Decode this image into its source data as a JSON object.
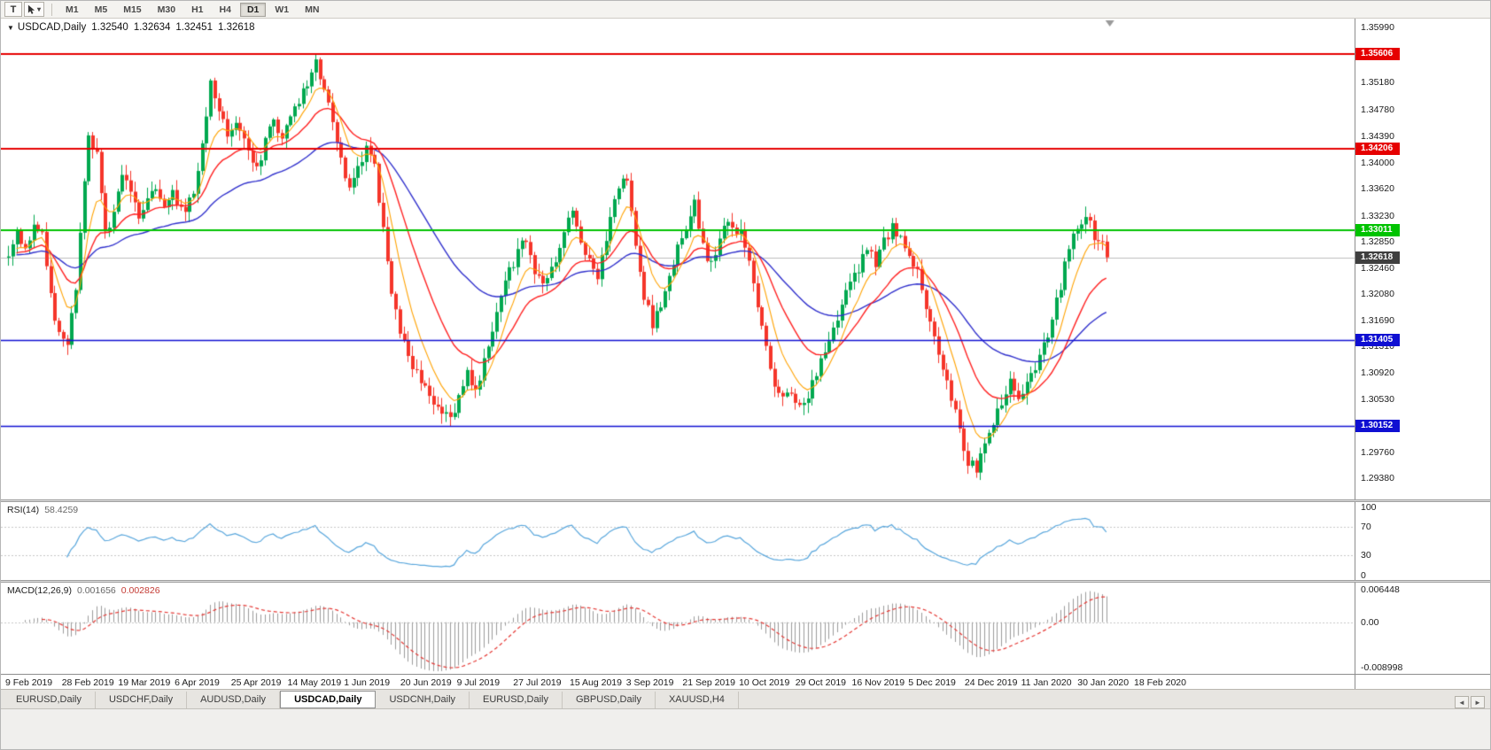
{
  "toolbar": {
    "tool_t": "T",
    "timeframes": [
      "M1",
      "M5",
      "M15",
      "M30",
      "H1",
      "H4",
      "D1",
      "W1",
      "MN"
    ],
    "active_timeframe": "D1"
  },
  "chart": {
    "symbol_label": "USDCAD,Daily",
    "ohlc": {
      "open": "1.32540",
      "high": "1.32634",
      "low": "1.32451",
      "close": "1.32618"
    },
    "current_price": 1.32618,
    "current_price_label": "1.32618",
    "y_axis_labels": [
      "1.35990",
      "1.35590",
      "1.35180",
      "1.34780",
      "1.34390",
      "1.34000",
      "1.33620",
      "1.33230",
      "1.32850",
      "1.32460",
      "1.32080",
      "1.31690",
      "1.31310",
      "1.30920",
      "1.30530",
      "1.30140",
      "1.29760",
      "1.29380"
    ],
    "x_axis_labels": [
      "9 Feb 2019",
      "28 Feb 2019",
      "19 Mar 2019",
      "6 Apr 2019",
      "25 Apr 2019",
      "14 May 2019",
      "1 Jun 2019",
      "20 Jun 2019",
      "9 Jul 2019",
      "27 Jul 2019",
      "15 Aug 2019",
      "3 Sep 2019",
      "21 Sep 2019",
      "10 Oct 2019",
      "29 Oct 2019",
      "16 Nov 2019",
      "5 Dec 2019",
      "24 Dec 2019",
      "11 Jan 2020",
      "30 Jan 2020",
      "18 Feb 2020"
    ],
    "levels": [
      {
        "label": "1.35606",
        "price": 1.35606,
        "color": "#e60000",
        "line_width": 2
      },
      {
        "label": "1.34206",
        "price": 1.34206,
        "color": "#e60000",
        "line_width": 2
      },
      {
        "label": "1.33011",
        "price": 1.33011,
        "color": "#00c300",
        "line_width": 2
      },
      {
        "label": "1.31405",
        "price": 1.31405,
        "color": "#0f0fd2",
        "line_width": 1.5
      },
      {
        "label": "1.30152",
        "price": 1.30152,
        "color": "#0f0fd2",
        "line_width": 1.5
      }
    ]
  },
  "rsi": {
    "title": "RSI(14)",
    "value": "58.4259",
    "period": 14,
    "color": "#58a6dc",
    "scale": [
      {
        "label": "100",
        "value": 100
      },
      {
        "label": "70",
        "value": 70
      },
      {
        "label": "30",
        "value": 30
      },
      {
        "label": "0",
        "value": 0
      }
    ],
    "level_lines": [
      70,
      30
    ]
  },
  "macd": {
    "title": "MACD(12,26,9)",
    "value_main": "0.001656",
    "value_signal": "0.002826",
    "fast": 12,
    "slow": 26,
    "signal": 9,
    "hist_color": "#9b9b9b",
    "signal_color": "#e53935",
    "scale_max": 0.006448,
    "scale_min": -0.008998,
    "scale": [
      {
        "label": "0.006448",
        "value": 0.006448
      },
      {
        "label": "0.00",
        "value": 0
      },
      {
        "label": "-0.008998",
        "value": -0.008998
      }
    ]
  },
  "tabs": {
    "items": [
      "EURUSD,Daily",
      "USDCHF,Daily",
      "AUDUSD,Daily",
      "USDCAD,Daily",
      "USDCNH,Daily",
      "EURUSD,Daily",
      "GBPUSD,Daily",
      "XAUUSD,H4"
    ],
    "active_index": 3
  },
  "colors": {
    "bull": "#00a84f",
    "bear": "#f5352a",
    "ma_fast": "#ffa200",
    "ma_mid": "#ff2222",
    "ma_slow": "#3030cc",
    "price_line": "#bdbdbd",
    "badge_current": "#3f3f3f",
    "shift_marker": "#9a9a9a"
  },
  "chart_data": {
    "type": "candlestick",
    "symbol": "USDCAD",
    "timeframe": "Daily",
    "n_candles": 262,
    "keypoints_format": "[bar_index, close_price]",
    "close_keypoints": [
      [
        0,
        1.3258
      ],
      [
        2,
        1.3298
      ],
      [
        4,
        1.327
      ],
      [
        6,
        1.3308
      ],
      [
        8,
        1.3295
      ],
      [
        10,
        1.3205
      ],
      [
        12,
        1.3148
      ],
      [
        14,
        1.314
      ],
      [
        16,
        1.322
      ],
      [
        18,
        1.338
      ],
      [
        19,
        1.3435
      ],
      [
        21,
        1.341
      ],
      [
        23,
        1.3295
      ],
      [
        25,
        1.332
      ],
      [
        27,
        1.3385
      ],
      [
        29,
        1.336
      ],
      [
        31,
        1.332
      ],
      [
        33,
        1.335
      ],
      [
        35,
        1.3365
      ],
      [
        37,
        1.334
      ],
      [
        39,
        1.3355
      ],
      [
        41,
        1.333
      ],
      [
        43,
        1.3345
      ],
      [
        45,
        1.338
      ],
      [
        47,
        1.346
      ],
      [
        48,
        1.3515
      ],
      [
        50,
        1.347
      ],
      [
        52,
        1.3442
      ],
      [
        54,
        1.3465
      ],
      [
        56,
        1.3438
      ],
      [
        58,
        1.3408
      ],
      [
        59,
        1.339
      ],
      [
        61,
        1.3435
      ],
      [
        63,
        1.3465
      ],
      [
        65,
        1.344
      ],
      [
        67,
        1.3462
      ],
      [
        69,
        1.3488
      ],
      [
        71,
        1.3515
      ],
      [
        73,
        1.3558
      ],
      [
        75,
        1.3505
      ],
      [
        77,
        1.3465
      ],
      [
        79,
        1.3405
      ],
      [
        81,
        1.3368
      ],
      [
        83,
        1.339
      ],
      [
        85,
        1.3425
      ],
      [
        87,
        1.34
      ],
      [
        89,
        1.33
      ],
      [
        91,
        1.321
      ],
      [
        93,
        1.315
      ],
      [
        95,
        1.3118
      ],
      [
        97,
        1.3095
      ],
      [
        99,
        1.3068
      ],
      [
        101,
        1.3048
      ],
      [
        103,
        1.3032
      ],
      [
        105,
        1.3024
      ],
      [
        107,
        1.3052
      ],
      [
        109,
        1.3098
      ],
      [
        111,
        1.3068
      ],
      [
        113,
        1.3108
      ],
      [
        115,
        1.3158
      ],
      [
        117,
        1.3198
      ],
      [
        119,
        1.324
      ],
      [
        121,
        1.3272
      ],
      [
        123,
        1.3292
      ],
      [
        125,
        1.3242
      ],
      [
        127,
        1.3215
      ],
      [
        129,
        1.3245
      ],
      [
        131,
        1.3282
      ],
      [
        133,
        1.3312
      ],
      [
        134,
        1.3332
      ],
      [
        136,
        1.329
      ],
      [
        138,
        1.3252
      ],
      [
        140,
        1.3228
      ],
      [
        142,
        1.3288
      ],
      [
        144,
        1.3342
      ],
      [
        146,
        1.3378
      ],
      [
        147,
        1.3382
      ],
      [
        149,
        1.3278
      ],
      [
        151,
        1.3208
      ],
      [
        153,
        1.3163
      ],
      [
        155,
        1.3192
      ],
      [
        157,
        1.3232
      ],
      [
        159,
        1.3272
      ],
      [
        161,
        1.3302
      ],
      [
        163,
        1.3338
      ],
      [
        165,
        1.3282
      ],
      [
        167,
        1.3248
      ],
      [
        169,
        1.3288
      ],
      [
        171,
        1.3312
      ],
      [
        173,
        1.329
      ],
      [
        174,
        1.3302
      ],
      [
        176,
        1.3252
      ],
      [
        178,
        1.3188
      ],
      [
        180,
        1.3128
      ],
      [
        182,
        1.3078
      ],
      [
        184,
        1.3058
      ],
      [
        186,
        1.3068
      ],
      [
        188,
        1.3044
      ],
      [
        190,
        1.3058
      ],
      [
        192,
        1.3088
      ],
      [
        194,
        1.3128
      ],
      [
        196,
        1.3158
      ],
      [
        198,
        1.319
      ],
      [
        200,
        1.3222
      ],
      [
        202,
        1.3248
      ],
      [
        204,
        1.3272
      ],
      [
        206,
        1.3256
      ],
      [
        208,
        1.3282
      ],
      [
        210,
        1.3306
      ],
      [
        212,
        1.3288
      ],
      [
        214,
        1.3266
      ],
      [
        216,
        1.3238
      ],
      [
        218,
        1.3186
      ],
      [
        220,
        1.3138
      ],
      [
        222,
        1.3096
      ],
      [
        224,
        1.3058
      ],
      [
        226,
        1.3008
      ],
      [
        228,
        1.2962
      ],
      [
        230,
        1.295
      ],
      [
        232,
        1.2986
      ],
      [
        234,
        1.3022
      ],
      [
        236,
        1.3052
      ],
      [
        238,
        1.3076
      ],
      [
        240,
        1.3058
      ],
      [
        242,
        1.3082
      ],
      [
        244,
        1.3102
      ],
      [
        246,
        1.3132
      ],
      [
        248,
        1.3172
      ],
      [
        250,
        1.3222
      ],
      [
        252,
        1.3272
      ],
      [
        254,
        1.3312
      ],
      [
        256,
        1.3322
      ],
      [
        258,
        1.3295
      ],
      [
        260,
        1.3285
      ],
      [
        261,
        1.32618
      ]
    ],
    "pins": [
      {
        "i": 73,
        "high": 1.35606
      },
      {
        "i": 105,
        "low": 1.3014
      },
      {
        "i": 230,
        "low": 1.29385
      }
    ],
    "moving_averages": [
      {
        "name": "fast",
        "period": 8,
        "color": "#ffa200"
      },
      {
        "name": "medium",
        "period": 20,
        "color": "#ff2222"
      },
      {
        "name": "slow",
        "period": 50,
        "color": "#3030cc"
      }
    ],
    "horizontal_levels": [
      1.35606,
      1.34206,
      1.33011,
      1.31405,
      1.30152
    ],
    "last_bar": {
      "open": 1.3254,
      "high": 1.32634,
      "low": 1.32451,
      "close": 1.32618
    },
    "rsi_last": 58.4259,
    "macd_last": 0.001656,
    "macd_signal_last": 0.002826
  }
}
